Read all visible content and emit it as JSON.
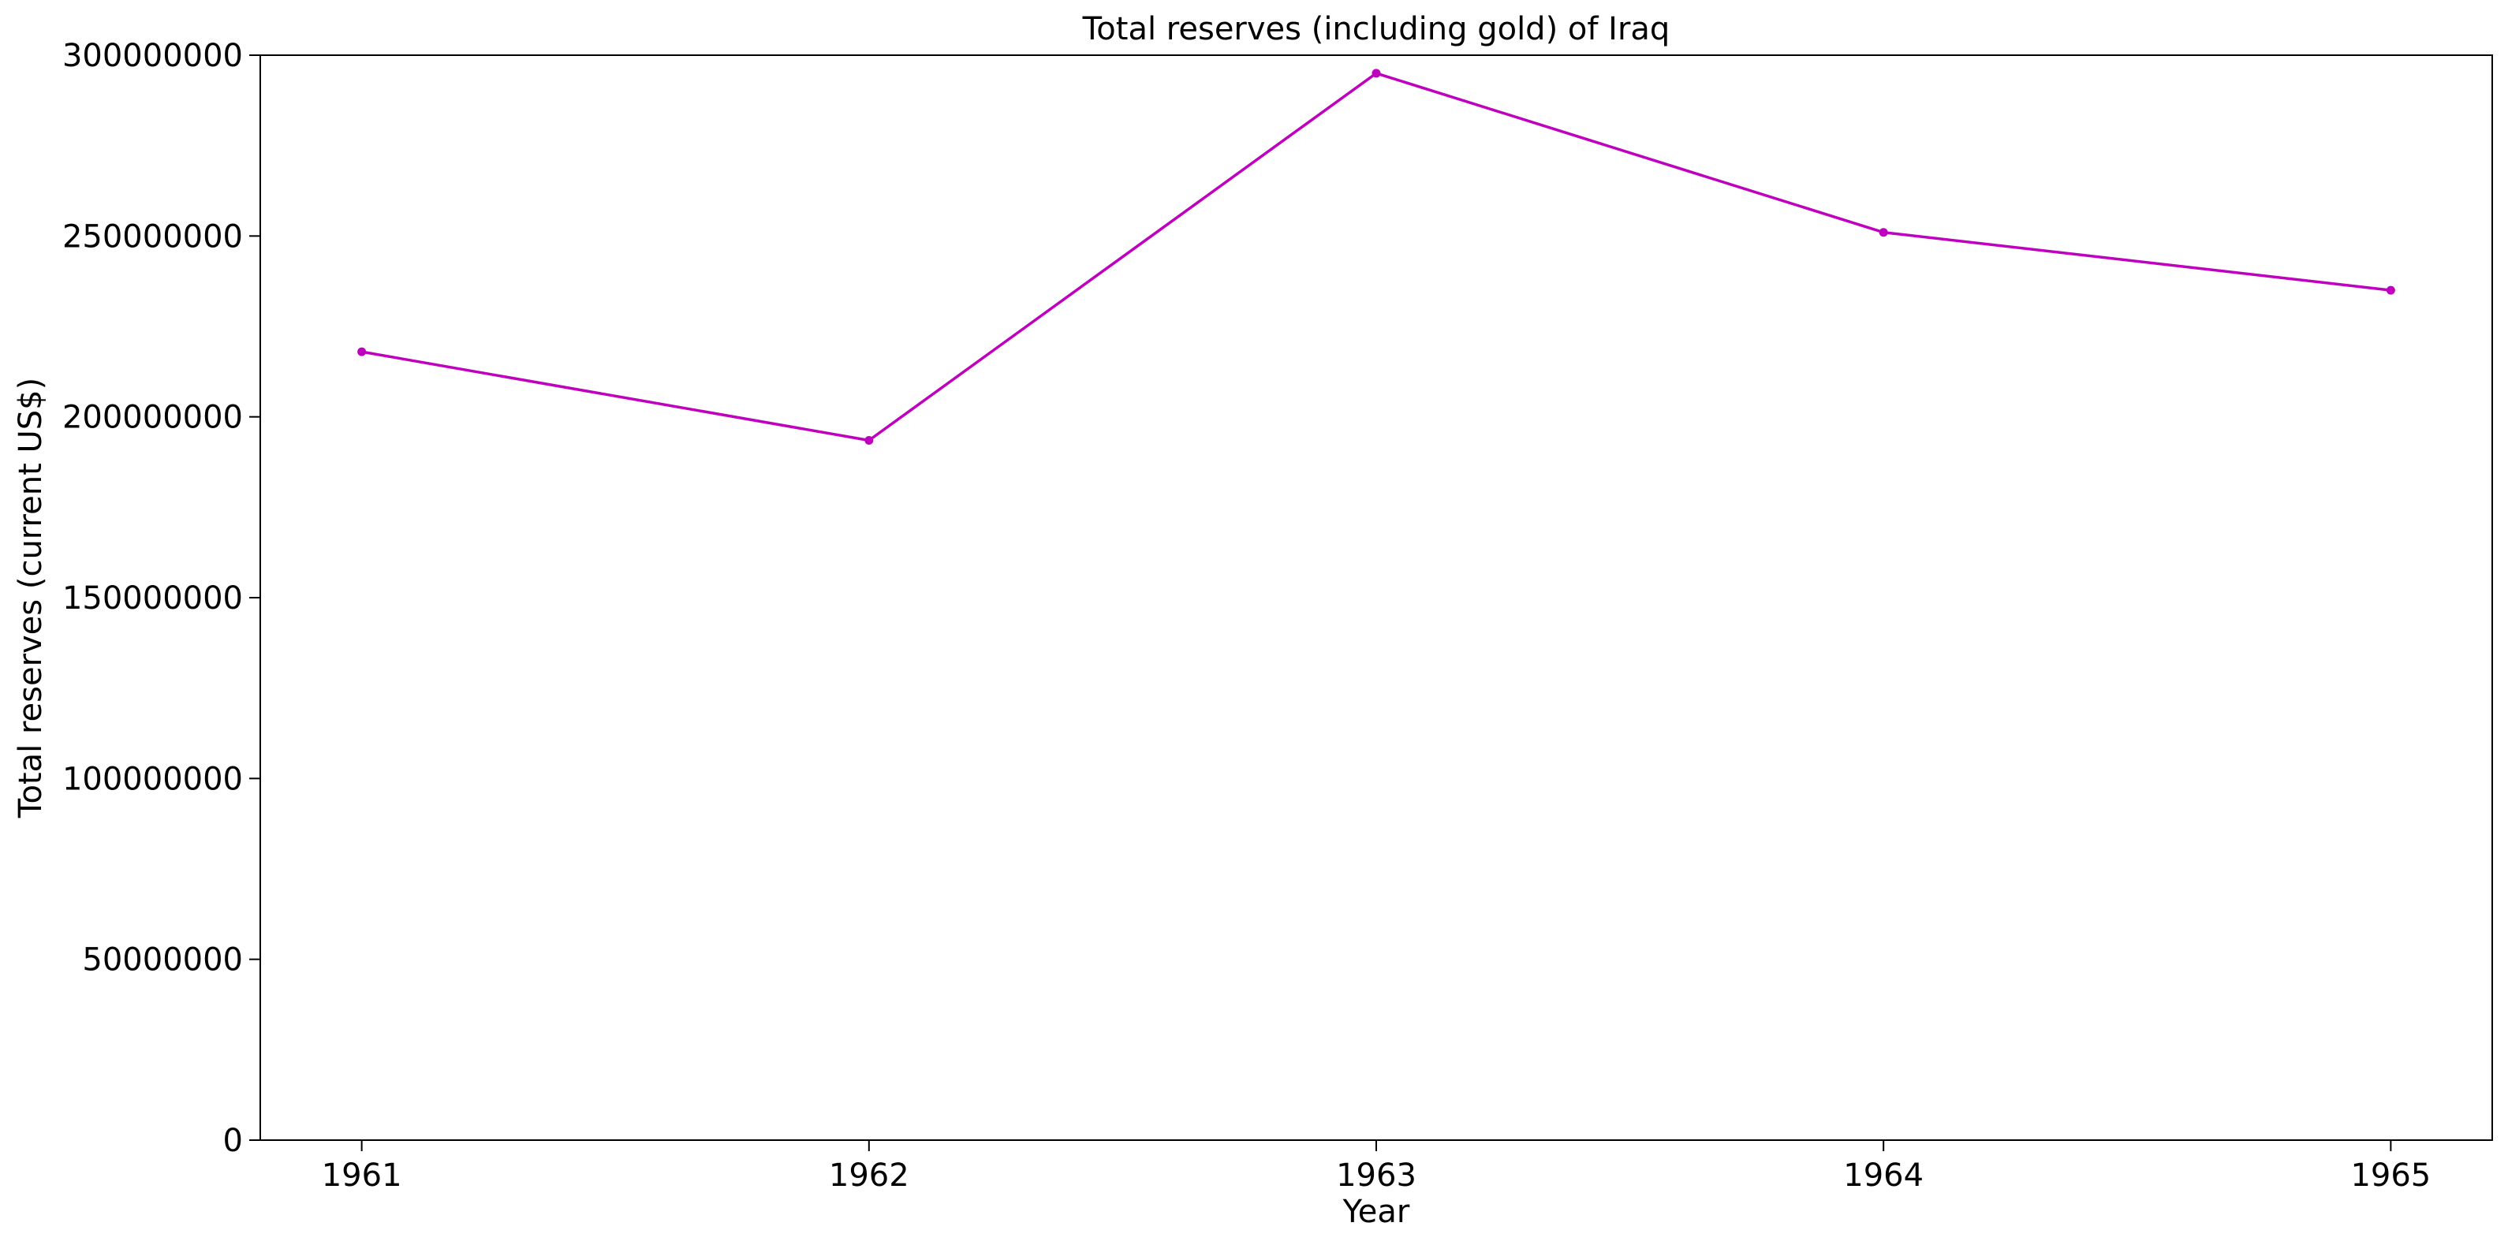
{
  "chart_data": {
    "type": "line",
    "title": "Total reserves (including gold) of Iraq",
    "xlabel": "Year",
    "ylabel": "Total reserves (current US$)",
    "x": [
      1961,
      1962,
      1963,
      1964,
      1965
    ],
    "x_tick_labels": [
      "1961",
      "1962",
      "1963",
      "1964",
      "1965"
    ],
    "y_tick_labels": [
      "0",
      "50000000",
      "100000000",
      "150000000",
      "200000000",
      "250000000",
      "300000000"
    ],
    "y_ticks": [
      0,
      50000000,
      100000000,
      150000000,
      200000000,
      250000000,
      300000000
    ],
    "ylim": [
      0,
      300000000
    ],
    "xlim": [
      1960.8,
      1965.2
    ],
    "series": [
      {
        "values": [
          218000000,
          193500000,
          295000000,
          251000000,
          235000000
        ],
        "color": "#bf00bf",
        "marker": "circle"
      }
    ],
    "grid": false,
    "legend": false
  }
}
